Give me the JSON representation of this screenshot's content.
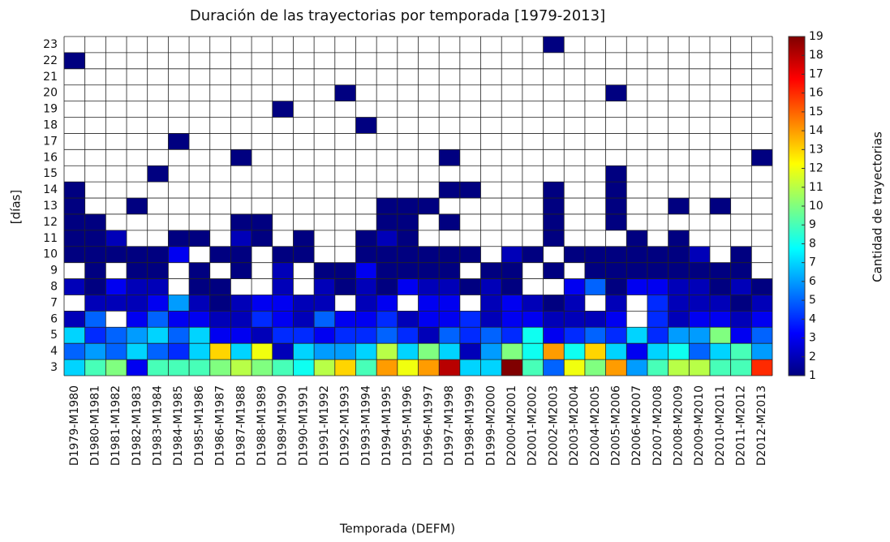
{
  "chart_data": {
    "type": "heatmap",
    "title": "Duración de las trayectorias por temporada [1979-2013]",
    "xlabel": "Temporada (DEFM)",
    "ylabel": "[días]",
    "colorbar_label": "Cantidad de trayectorias",
    "categories": [
      "D1979-M1980",
      "D1980-M1981",
      "D1981-M1982",
      "D1982-M1983",
      "D1983-M1984",
      "D1984-M1985",
      "D1985-M1986",
      "D1986-M1987",
      "D1987-M1988",
      "D1988-M1989",
      "D1989-M1990",
      "D1990-M1991",
      "D1991-M1992",
      "D1992-M1993",
      "D1993-M1994",
      "D1994-M1995",
      "D1995-M1996",
      "D1996-M1997",
      "D1997-M1998",
      "D1998-M1999",
      "D1999-M2000",
      "D2000-M2001",
      "D2001-M2002",
      "D2002-M2003",
      "D2003-M2004",
      "D2004-M2005",
      "D2005-M2006",
      "D2006-M2007",
      "D2007-M2008",
      "D2008-M2009",
      "D2009-M2010",
      "D2010-M2011",
      "D2011-M2012",
      "D2012-M2013"
    ],
    "label_colors": [
      "#d62020",
      "#111111",
      "#111111",
      "#d62020",
      "#2233cc",
      "#2233cc",
      "#111111",
      "#d62020",
      "#d62020",
      "#2233cc",
      "#111111",
      "#111111",
      "#d62020",
      "#111111",
      "#111111",
      "#d62020",
      "#2233cc",
      "#111111",
      "#d62020",
      "#2233cc",
      "#2233cc",
      "#2233cc",
      "#111111",
      "#d62020",
      "#111111",
      "#d62020",
      "#2233cc",
      "#d62020",
      "#2233cc",
      "#2233cc",
      "#d62020",
      "#2233cc",
      "#2233cc",
      "#111111"
    ],
    "y": [
      3,
      4,
      5,
      6,
      7,
      8,
      9,
      10,
      11,
      12,
      13,
      14,
      15,
      16,
      17,
      18,
      19,
      20,
      21,
      22,
      23
    ],
    "z": [
      [
        7,
        9,
        10,
        3,
        9,
        9,
        9,
        10,
        11,
        10,
        9,
        8,
        11,
        13,
        9,
        14,
        12,
        14,
        18,
        7,
        7,
        19,
        9,
        5,
        12,
        10,
        14,
        6,
        9,
        11,
        11,
        9,
        9,
        16
      ],
      [
        5,
        6,
        5,
        7,
        5,
        4,
        7,
        13,
        7,
        12,
        2,
        7,
        6,
        6,
        7,
        11,
        7,
        10,
        7,
        2,
        6,
        10,
        8,
        14,
        8,
        13,
        7,
        3,
        7,
        8,
        5,
        7,
        9,
        6
      ],
      [
        7,
        4,
        5,
        6,
        7,
        5,
        7,
        3,
        3,
        2,
        4,
        4,
        3,
        4,
        4,
        5,
        4,
        2,
        5,
        4,
        5,
        4,
        8,
        3,
        4,
        5,
        4,
        7,
        4,
        6,
        6,
        10,
        3,
        5
      ],
      [
        2,
        5,
        null,
        3,
        5,
        3,
        3,
        2,
        2,
        4,
        3,
        2,
        5,
        3,
        3,
        4,
        2,
        3,
        3,
        4,
        2,
        3,
        3,
        2,
        2,
        2,
        3,
        null,
        4,
        2,
        3,
        3,
        2,
        3
      ],
      [
        null,
        2,
        2,
        2,
        3,
        6,
        2,
        1,
        2,
        3,
        3,
        2,
        2,
        null,
        2,
        3,
        null,
        3,
        3,
        null,
        2,
        3,
        2,
        1,
        2,
        null,
        2,
        null,
        4,
        2,
        2,
        2,
        1,
        2
      ],
      [
        2,
        1,
        3,
        2,
        2,
        null,
        1,
        1,
        null,
        null,
        2,
        null,
        2,
        1,
        2,
        1,
        3,
        2,
        2,
        1,
        2,
        1,
        null,
        null,
        3,
        5,
        1,
        3,
        3,
        2,
        2,
        1,
        2,
        1
      ],
      [
        null,
        1,
        null,
        1,
        1,
        null,
        1,
        null,
        1,
        null,
        2,
        null,
        1,
        1,
        3,
        1,
        1,
        1,
        1,
        null,
        1,
        1,
        null,
        1,
        null,
        1,
        1,
        1,
        1,
        1,
        1,
        1,
        1,
        null
      ],
      [
        1,
        1,
        1,
        1,
        1,
        3,
        null,
        1,
        1,
        null,
        1,
        1,
        null,
        null,
        1,
        1,
        1,
        1,
        1,
        1,
        null,
        2,
        1,
        null,
        1,
        1,
        1,
        1,
        1,
        1,
        2,
        null,
        1,
        null
      ],
      [
        1,
        1,
        2,
        null,
        null,
        1,
        1,
        null,
        2,
        1,
        null,
        1,
        null,
        null,
        1,
        2,
        1,
        null,
        null,
        null,
        null,
        null,
        null,
        1,
        null,
        null,
        null,
        1,
        null,
        1,
        null,
        null,
        null,
        null
      ],
      [
        1,
        1,
        null,
        null,
        null,
        null,
        null,
        null,
        1,
        1,
        null,
        null,
        null,
        null,
        null,
        1,
        1,
        null,
        1,
        null,
        null,
        null,
        null,
        1,
        null,
        null,
        1,
        null,
        null,
        null,
        null,
        null,
        null,
        null
      ],
      [
        1,
        null,
        null,
        1,
        null,
        null,
        null,
        null,
        null,
        null,
        null,
        null,
        null,
        null,
        null,
        1,
        1,
        1,
        null,
        null,
        null,
        null,
        null,
        1,
        null,
        null,
        1,
        null,
        null,
        1,
        null,
        1,
        null,
        null
      ],
      [
        1,
        null,
        null,
        null,
        null,
        null,
        null,
        null,
        null,
        null,
        null,
        null,
        null,
        null,
        null,
        null,
        null,
        null,
        1,
        1,
        null,
        null,
        null,
        1,
        null,
        null,
        1,
        null,
        null,
        null,
        null,
        null,
        null,
        null
      ],
      [
        null,
        null,
        null,
        null,
        1,
        null,
        null,
        null,
        null,
        null,
        null,
        null,
        null,
        null,
        null,
        null,
        null,
        null,
        null,
        null,
        null,
        null,
        null,
        null,
        null,
        null,
        1,
        null,
        null,
        null,
        null,
        null,
        null,
        null
      ],
      [
        null,
        null,
        null,
        null,
        null,
        null,
        null,
        null,
        1,
        null,
        null,
        null,
        null,
        null,
        null,
        null,
        null,
        null,
        1,
        null,
        null,
        null,
        null,
        null,
        null,
        null,
        null,
        null,
        null,
        null,
        null,
        null,
        null,
        1
      ],
      [
        null,
        null,
        null,
        null,
        null,
        1,
        null,
        null,
        null,
        null,
        null,
        null,
        null,
        null,
        null,
        null,
        null,
        null,
        null,
        null,
        null,
        null,
        null,
        null,
        null,
        null,
        null,
        null,
        null,
        null,
        null,
        null,
        null,
        null
      ],
      [
        null,
        null,
        null,
        null,
        null,
        null,
        null,
        null,
        null,
        null,
        null,
        null,
        null,
        null,
        1,
        null,
        null,
        null,
        null,
        null,
        null,
        null,
        null,
        null,
        null,
        null,
        null,
        null,
        null,
        null,
        null,
        null,
        null,
        null
      ],
      [
        null,
        null,
        null,
        null,
        null,
        null,
        null,
        null,
        null,
        null,
        1,
        null,
        null,
        null,
        null,
        null,
        null,
        null,
        null,
        null,
        null,
        null,
        null,
        null,
        null,
        null,
        null,
        null,
        null,
        null,
        null,
        null,
        null,
        null
      ],
      [
        null,
        null,
        null,
        null,
        null,
        null,
        null,
        null,
        null,
        null,
        null,
        null,
        null,
        1,
        null,
        null,
        null,
        null,
        null,
        null,
        null,
        null,
        null,
        null,
        null,
        null,
        1,
        null,
        null,
        null,
        null,
        null,
        null,
        null
      ],
      [
        null,
        null,
        null,
        null,
        null,
        null,
        null,
        null,
        null,
        null,
        null,
        null,
        null,
        null,
        null,
        null,
        null,
        null,
        null,
        null,
        null,
        null,
        null,
        null,
        null,
        null,
        null,
        null,
        null,
        null,
        null,
        null,
        null,
        null
      ],
      [
        1,
        null,
        null,
        null,
        null,
        null,
        null,
        null,
        null,
        null,
        null,
        null,
        null,
        null,
        null,
        null,
        null,
        null,
        null,
        null,
        null,
        null,
        null,
        null,
        null,
        null,
        null,
        null,
        null,
        null,
        null,
        null,
        null,
        null
      ],
      [
        null,
        null,
        null,
        null,
        null,
        null,
        null,
        null,
        null,
        null,
        null,
        null,
        null,
        null,
        null,
        null,
        null,
        null,
        null,
        null,
        null,
        null,
        null,
        1,
        null,
        null,
        null,
        null,
        null,
        null,
        null,
        null,
        null,
        null
      ]
    ],
    "clim": [
      1,
      19
    ],
    "cticks": [
      1,
      2,
      3,
      4,
      5,
      6,
      7,
      8,
      9,
      10,
      11,
      12,
      13,
      14,
      15,
      16,
      17,
      18,
      19
    ],
    "colormap": "jet"
  }
}
